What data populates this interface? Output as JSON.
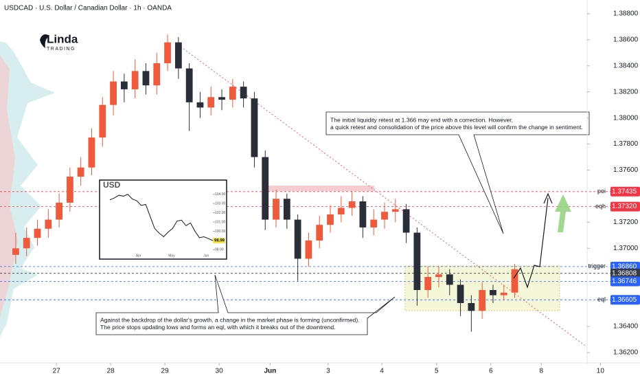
{
  "header": {
    "title": "USDCAD · U.S. Dollar / Canadian Dollar · 1h · OANDA",
    "logo": "Linda",
    "logo_sub": "TRADING"
  },
  "chart_data": {
    "type": "candlestick",
    "up_color": "#ef5a3c",
    "down_color": "#2a2e39",
    "x": [
      -0.75,
      -0.55,
      -0.35,
      -0.15,
      0.05,
      0.25,
      0.45,
      0.65,
      0.85,
      1.05,
      1.25,
      1.45,
      1.65,
      1.85,
      2.05,
      2.25,
      2.45,
      2.65,
      2.85,
      3.05,
      3.25,
      3.45,
      3.65,
      3.85,
      4.05,
      4.25,
      4.45,
      4.65,
      4.85,
      5.05,
      5.25,
      5.45,
      5.65,
      5.85,
      6.05,
      6.25,
      6.45,
      6.65,
      6.85,
      7.05,
      7.25,
      7.45,
      7.65,
      7.85,
      8.05,
      8.25,
      8.45
    ],
    "open": [
      1.3695,
      1.37,
      1.3708,
      1.3715,
      1.3722,
      1.3735,
      1.3755,
      1.3762,
      1.3785,
      1.381,
      1.3828,
      1.3822,
      1.3836,
      1.3825,
      1.3842,
      1.3858,
      1.3838,
      1.3812,
      1.3808,
      1.3816,
      1.3814,
      1.3824,
      1.3815,
      1.377,
      1.3722,
      1.3738,
      1.3722,
      1.3692,
      1.3706,
      1.3718,
      1.3726,
      1.3731,
      1.3736,
      1.3716,
      1.3722,
      1.3728,
      1.373,
      1.3712,
      1.3668,
      1.3678,
      1.368,
      1.3672,
      1.3658,
      1.3652,
      1.3668,
      1.3664,
      1.3666
    ],
    "high": [
      1.3712,
      1.3716,
      1.3722,
      1.373,
      1.3742,
      1.3762,
      1.377,
      1.3792,
      1.3816,
      1.3836,
      1.3834,
      1.3845,
      1.3842,
      1.385,
      1.3864,
      1.3862,
      1.3842,
      1.382,
      1.3824,
      1.3822,
      1.383,
      1.3828,
      1.382,
      1.3775,
      1.3745,
      1.3742,
      1.3726,
      1.3712,
      1.3725,
      1.3733,
      1.374,
      1.3744,
      1.374,
      1.373,
      1.3735,
      1.3738,
      1.3734,
      1.3716,
      1.3686,
      1.3686,
      1.3684,
      1.3676,
      1.3664,
      1.3674,
      1.3672,
      1.3672,
      1.3688
    ],
    "low": [
      1.3688,
      1.3694,
      1.3702,
      1.3708,
      1.3716,
      1.3728,
      1.3748,
      1.3756,
      1.3778,
      1.3802,
      1.3812,
      1.3815,
      1.3818,
      1.3818,
      1.3836,
      1.383,
      1.379,
      1.38,
      1.3802,
      1.3806,
      1.3808,
      1.3808,
      1.3762,
      1.3714,
      1.3716,
      1.3715,
      1.3675,
      1.3686,
      1.37,
      1.3712,
      1.372,
      1.3725,
      1.3708,
      1.371,
      1.3715,
      1.372,
      1.3704,
      1.3656,
      1.3662,
      1.367,
      1.3664,
      1.3648,
      1.3636,
      1.3646,
      1.3658,
      1.366,
      1.3662
    ],
    "close": [
      1.37,
      1.3708,
      1.3715,
      1.3722,
      1.3735,
      1.3755,
      1.3762,
      1.3785,
      1.381,
      1.3828,
      1.3822,
      1.3836,
      1.3825,
      1.3842,
      1.3858,
      1.3838,
      1.3812,
      1.3808,
      1.3816,
      1.3814,
      1.3824,
      1.3815,
      1.377,
      1.3722,
      1.3738,
      1.3722,
      1.3692,
      1.3706,
      1.3718,
      1.3726,
      1.3731,
      1.3736,
      1.3716,
      1.3722,
      1.3728,
      1.373,
      1.3712,
      1.3668,
      1.3678,
      1.368,
      1.3672,
      1.3658,
      1.3652,
      1.3668,
      1.3664,
      1.3666,
      1.3684
    ],
    "xlim": [
      -1.04,
      10.76
    ],
    "xticks": [
      {
        "value": 0,
        "label": "27"
      },
      {
        "value": 1,
        "label": "28"
      },
      {
        "value": 2,
        "label": "29"
      },
      {
        "value": 3,
        "label": "30"
      },
      {
        "value": 3.94,
        "label": "Jun"
      },
      {
        "value": 5.01,
        "label": "3"
      },
      {
        "value": 6,
        "label": "4"
      },
      {
        "value": 7.01,
        "label": "5"
      },
      {
        "value": 8.01,
        "label": "6"
      },
      {
        "value": 8.94,
        "label": "8"
      },
      {
        "value": 10.03,
        "label": "10"
      }
    ],
    "ylim": [
      1.36121,
      1.38905
    ],
    "yticks": [
      {
        "value": 1.388,
        "label": "1.38800"
      },
      {
        "value": 1.386,
        "label": "1.38600"
      },
      {
        "value": 1.384,
        "label": "1.38400"
      },
      {
        "value": 1.382,
        "label": "1.38200"
      },
      {
        "value": 1.38,
        "label": "1.38000"
      },
      {
        "value": 1.378,
        "label": "1.37800"
      },
      {
        "value": 1.376,
        "label": "1.37600"
      },
      {
        "value": 1.372,
        "label": "1.37200"
      },
      {
        "value": 1.37,
        "label": "1.37000"
      },
      {
        "value": 1.364,
        "label": "1.36400"
      },
      {
        "value": 1.362,
        "label": "1.36200"
      }
    ],
    "levels": [
      {
        "price": 1.37435,
        "price_label": "1.37435",
        "name": "poi",
        "color": "#f23645"
      },
      {
        "price": 1.3732,
        "price_label": "1.37320",
        "name": "eqh",
        "color": "#f23645"
      },
      {
        "price": 1.3686,
        "price_label": "1.36860",
        "name": "trigger",
        "color": "#2962ff"
      },
      {
        "price": 1.36808,
        "price_label": "1.36808",
        "color": "#363a45"
      },
      {
        "price": 1.36746,
        "price_label": "1.36746",
        "color": "#2962ff"
      },
      {
        "price": 1.36605,
        "price_label": "1.36605",
        "name": "eql",
        "color": "#2962ff"
      }
    ],
    "annotations": [
      {
        "lines": [
          "The initial liquidity retest at 1.366 may end with a correction. However,",
          "a quick retest and consolidation of the price above this level will confirm the change in sentiment."
        ]
      },
      {
        "lines": [
          "Against the backdrop of the dollar's growth, a change in the market phase is forming (unconfirmed).",
          "The price stops updating lows and forms an eql, with which it breaks out of the downtrend."
        ]
      }
    ],
    "inset": {
      "type": "line",
      "title": "USD",
      "color": "#131722",
      "values": [
        103.4,
        103.6,
        103.9,
        103.8,
        104.0,
        103.5,
        103.3,
        102.8,
        102.9,
        101.6,
        100.3,
        99.8,
        99.4,
        99.9,
        100.3,
        101.1,
        101.2,
        100.6,
        100.9,
        100.0,
        99.3,
        99.4,
        99.2,
        98.99
      ],
      "last_label": "98.99",
      "ylim": [
        97.5,
        104.8
      ],
      "yticks": [
        {
          "value": 104,
          "label": "104.00"
        },
        {
          "value": 103,
          "label": "103.00"
        },
        {
          "value": 102,
          "label": "102.00"
        },
        {
          "value": 101,
          "label": "101.00"
        },
        {
          "value": 100,
          "label": "100.00"
        },
        {
          "value": 98,
          "label": "98.00"
        }
      ],
      "xticks": [
        {
          "value": 6.4,
          "label": "Apr"
        },
        {
          "value": 13.8,
          "label": "May"
        },
        {
          "value": 21.5,
          "label": "Jun"
        }
      ]
    }
  }
}
